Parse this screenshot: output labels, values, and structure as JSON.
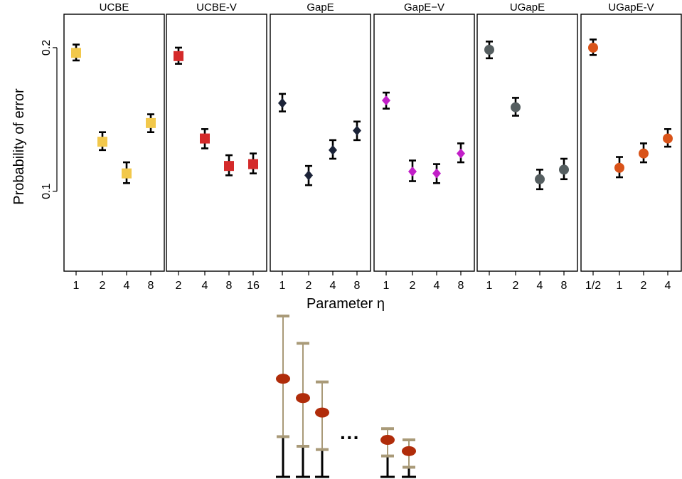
{
  "chart_data": {
    "type": "scatter",
    "error_bars": true,
    "y_scale": "log",
    "ylim": [
      0.068,
      0.235
    ],
    "ylabel": "Probability of error",
    "xlabel": "Parameter η",
    "y_ticks": [
      {
        "value": 0.1,
        "label": "0.1"
      },
      {
        "value": 0.2,
        "label": "0.2"
      }
    ],
    "grid": false,
    "panels": [
      {
        "title": "UCBE",
        "marker": "square",
        "color": "#F2C84B",
        "categories": [
          "1",
          "2",
          "4",
          "8"
        ],
        "values": [
          0.195,
          0.127,
          0.109,
          0.139
        ],
        "err_low": [
          0.188,
          0.122,
          0.104,
          0.133
        ],
        "err_high": [
          0.203,
          0.133,
          0.115,
          0.145
        ]
      },
      {
        "title": "UCBE-V",
        "marker": "square",
        "color": "#D42A2A",
        "categories": [
          "2",
          "4",
          "8",
          "16"
        ],
        "values": [
          0.192,
          0.129,
          0.113,
          0.114
        ],
        "err_low": [
          0.185,
          0.123,
          0.108,
          0.109
        ],
        "err_high": [
          0.2,
          0.135,
          0.119,
          0.12
        ]
      },
      {
        "title": "GapE",
        "marker": "diamond",
        "color": "#1B2338",
        "categories": [
          "1",
          "2",
          "4",
          "8"
        ],
        "values": [
          0.153,
          0.108,
          0.122,
          0.134
        ],
        "err_low": [
          0.147,
          0.103,
          0.117,
          0.128
        ],
        "err_high": [
          0.16,
          0.113,
          0.128,
          0.14
        ]
      },
      {
        "title": "GapE−V",
        "marker": "diamond",
        "color": "#C21FC8",
        "categories": [
          "1",
          "2",
          "4",
          "8"
        ],
        "values": [
          0.155,
          0.11,
          0.109,
          0.12
        ],
        "err_low": [
          0.149,
          0.105,
          0.104,
          0.115
        ],
        "err_high": [
          0.161,
          0.116,
          0.114,
          0.126
        ]
      },
      {
        "title": "UGapE",
        "marker": "circle",
        "color": "#555E60",
        "categories": [
          "1",
          "2",
          "4",
          "8"
        ],
        "values": [
          0.198,
          0.15,
          0.106,
          0.111
        ],
        "err_low": [
          0.19,
          0.144,
          0.101,
          0.106
        ],
        "err_high": [
          0.206,
          0.157,
          0.111,
          0.117
        ]
      },
      {
        "title": "UGapE-V",
        "marker": "circle",
        "color": "#D95319",
        "categories": [
          "1/2",
          "1",
          "2",
          "4"
        ],
        "values": [
          0.2,
          0.112,
          0.12,
          0.129
        ],
        "err_low": [
          0.193,
          0.107,
          0.115,
          0.124
        ],
        "err_high": [
          0.208,
          0.118,
          0.126,
          0.135
        ]
      }
    ]
  },
  "illustration": {
    "ellipsis": "···",
    "marker_color": "#B02C0A",
    "bar_color": "#A99A78",
    "bars": [
      {
        "mean": 0.61,
        "lower": 0.25,
        "upper": 1.0
      },
      {
        "mean": 0.49,
        "lower": 0.19,
        "upper": 0.83
      },
      {
        "mean": 0.4,
        "lower": 0.17,
        "upper": 0.59
      },
      {
        "mean": 0.23,
        "lower": 0.13,
        "upper": 0.3
      },
      {
        "mean": 0.16,
        "lower": 0.06,
        "upper": 0.23
      }
    ]
  }
}
